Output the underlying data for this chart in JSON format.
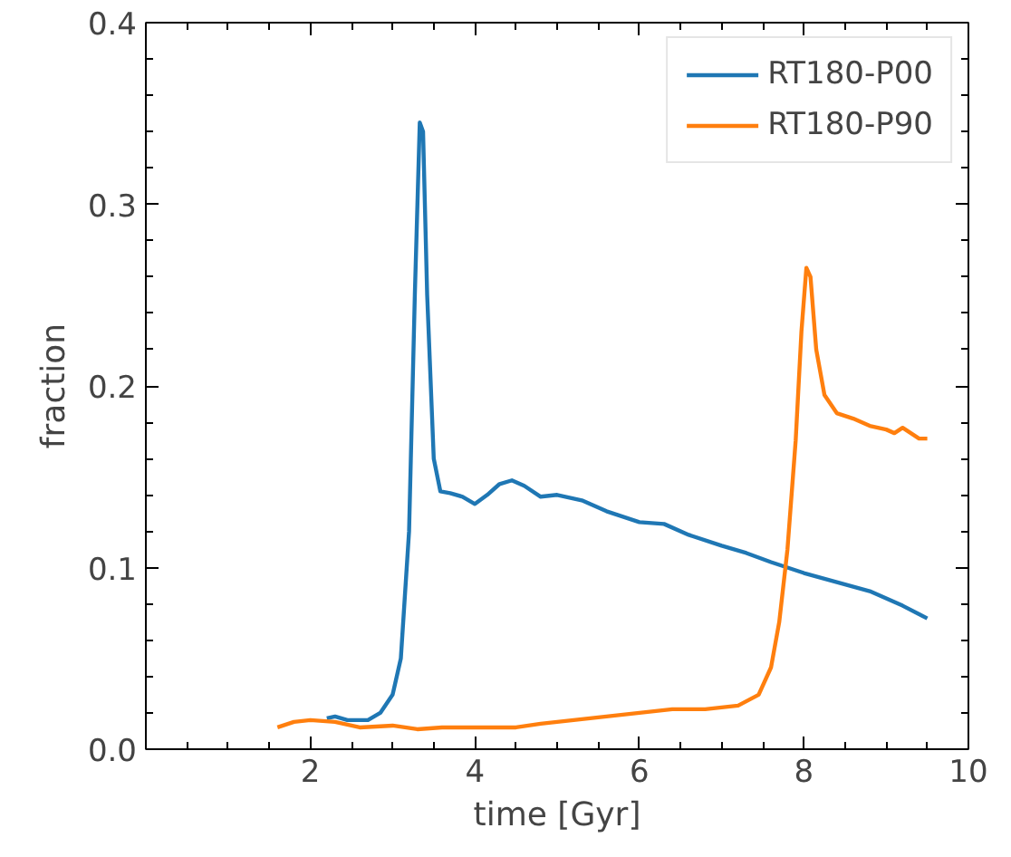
{
  "chart_data": {
    "type": "line",
    "xlabel": "time [Gyr]",
    "ylabel": "fraction",
    "xlim": [
      0,
      10
    ],
    "ylim": [
      0,
      0.4
    ],
    "xticks": [
      2,
      4,
      6,
      8,
      10
    ],
    "yticks": [
      {
        "value": 0,
        "label": "0.0"
      },
      0.1,
      0.2,
      0.3,
      0.4
    ],
    "grid": false,
    "legend": "top right",
    "series": [
      {
        "name": "RT180-P00",
        "color": "#1f77b4",
        "x": [
          2.2,
          2.3,
          2.45,
          2.7,
          2.85,
          3.0,
          3.1,
          3.2,
          3.27,
          3.33,
          3.37,
          3.42,
          3.5,
          3.58,
          3.7,
          3.85,
          4.0,
          4.15,
          4.3,
          4.45,
          4.6,
          4.8,
          5.0,
          5.3,
          5.6,
          6.0,
          6.3,
          6.6,
          7.0,
          7.3,
          7.6,
          8.0,
          8.4,
          8.8,
          9.2,
          9.5
        ],
        "values": [
          0.017,
          0.018,
          0.016,
          0.016,
          0.02,
          0.03,
          0.05,
          0.12,
          0.25,
          0.345,
          0.34,
          0.25,
          0.16,
          0.142,
          0.141,
          0.139,
          0.135,
          0.14,
          0.146,
          0.148,
          0.145,
          0.139,
          0.14,
          0.137,
          0.131,
          0.125,
          0.124,
          0.118,
          0.112,
          0.108,
          0.103,
          0.097,
          0.092,
          0.087,
          0.079,
          0.072
        ]
      },
      {
        "name": "RT180-P90",
        "color": "#ff7f0e",
        "x": [
          1.6,
          1.8,
          2.0,
          2.3,
          2.6,
          3.0,
          3.3,
          3.6,
          4.0,
          4.5,
          4.8,
          5.2,
          5.6,
          6.0,
          6.4,
          6.8,
          7.2,
          7.45,
          7.6,
          7.7,
          7.8,
          7.9,
          7.97,
          8.03,
          8.08,
          8.15,
          8.25,
          8.4,
          8.6,
          8.8,
          9.0,
          9.1,
          9.2,
          9.4,
          9.5
        ],
        "values": [
          0.012,
          0.015,
          0.016,
          0.015,
          0.012,
          0.013,
          0.011,
          0.012,
          0.012,
          0.012,
          0.014,
          0.016,
          0.018,
          0.02,
          0.022,
          0.022,
          0.024,
          0.03,
          0.045,
          0.07,
          0.11,
          0.17,
          0.23,
          0.265,
          0.26,
          0.22,
          0.195,
          0.185,
          0.182,
          0.178,
          0.176,
          0.174,
          0.177,
          0.171,
          0.171
        ]
      }
    ]
  }
}
